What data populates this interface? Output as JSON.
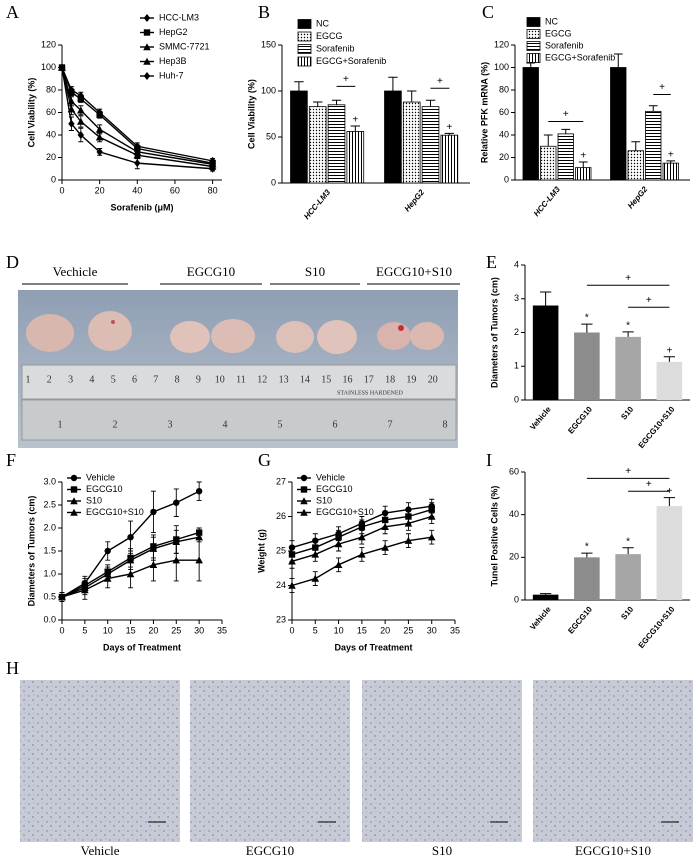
{
  "chart_data": [
    {
      "type": "line",
      "panel": "A",
      "ylabel": "Cell Viability (%)",
      "xlabel": "Sorafenib (μM)",
      "x": [
        0,
        5,
        10,
        20,
        40,
        80
      ],
      "xlim": [
        0,
        85
      ],
      "xticks": [
        0,
        20,
        40,
        60,
        80
      ],
      "ylim": [
        0,
        120
      ],
      "yticks": [
        0,
        20,
        40,
        60,
        80,
        100,
        120
      ],
      "series": [
        {
          "name": "HCC-LM3",
          "color": "#000000",
          "marker": "diamond",
          "values": [
            100,
            80,
            75,
            60,
            30,
            17
          ],
          "errors": [
            2,
            3,
            3,
            3,
            3,
            2
          ]
        },
        {
          "name": "HepG2",
          "color": "#000000",
          "marker": "square",
          "values": [
            100,
            78,
            72,
            58,
            28,
            15
          ],
          "errors": [
            2,
            3,
            3,
            3,
            3,
            2
          ]
        },
        {
          "name": "SMMC-7721",
          "color": "#000000",
          "marker": "triangle",
          "values": [
            100,
            70,
            62,
            45,
            25,
            14
          ],
          "errors": [
            2,
            4,
            4,
            4,
            3,
            2
          ]
        },
        {
          "name": "Hep3B",
          "color": "#000000",
          "marker": "triangle",
          "values": [
            100,
            63,
            52,
            38,
            22,
            12
          ],
          "errors": [
            2,
            5,
            5,
            4,
            3,
            2
          ]
        },
        {
          "name": "Huh-7",
          "color": "#000000",
          "marker": "diamond",
          "values": [
            100,
            50,
            40,
            25,
            15,
            10
          ],
          "errors": [
            2,
            6,
            6,
            3,
            5,
            2
          ]
        }
      ]
    },
    {
      "type": "bar",
      "panel": "B",
      "ylabel": "Cell Viability (%)",
      "categories": [
        "HCC-LM3",
        "HepG2"
      ],
      "ylim": [
        0,
        150
      ],
      "yticks": [
        0,
        50,
        100,
        150
      ],
      "series": [
        {
          "name": "NC",
          "color": "#000000",
          "values": [
            100,
            100
          ],
          "errors": [
            10,
            15
          ]
        },
        {
          "name": "EGCG",
          "color": "#000000",
          "pattern": "dots",
          "values": [
            83,
            88
          ],
          "errors": [
            5,
            12
          ]
        },
        {
          "name": "Sorafenib",
          "color": "#000000",
          "pattern": "hlines",
          "values": [
            85,
            83
          ],
          "errors": [
            5,
            7
          ]
        },
        {
          "name": "EGCG+Sorafenib",
          "color": "#000000",
          "pattern": "vlines",
          "values": [
            56,
            52
          ],
          "errors": [
            6,
            2
          ],
          "notes": [
            "+",
            "+"
          ]
        }
      ],
      "brackets": [
        {
          "label": "+",
          "category": 0,
          "from": 2,
          "to": 3,
          "y": 105
        },
        {
          "label": "+",
          "category": 1,
          "from": 2,
          "to": 3,
          "y": 103
        }
      ]
    },
    {
      "type": "bar",
      "panel": "C",
      "ylabel": "Relative PFK mRNA (%)",
      "categories": [
        "HCC-LM3",
        "HepG2"
      ],
      "ylim": [
        0,
        120
      ],
      "yticks": [
        0,
        20,
        40,
        60,
        80,
        100,
        120
      ],
      "series": [
        {
          "name": "NC",
          "color": "#000000",
          "values": [
            100,
            100
          ],
          "errors": [
            4,
            12
          ]
        },
        {
          "name": "EGCG",
          "color": "#000000",
          "pattern": "dots",
          "values": [
            30,
            26
          ],
          "errors": [
            10,
            8
          ]
        },
        {
          "name": "Sorafenib",
          "color": "#000000",
          "pattern": "hlines",
          "values": [
            41,
            61
          ],
          "errors": [
            4,
            5
          ]
        },
        {
          "name": "EGCG+Sorafenib",
          "color": "#000000",
          "pattern": "vlines",
          "values": [
            11,
            15
          ],
          "errors": [
            5,
            2
          ],
          "notes": [
            "+",
            "+"
          ]
        }
      ],
      "brackets": [
        {
          "label": "+",
          "category": 0,
          "from": 1,
          "to": 3,
          "y": 52
        },
        {
          "label": "+",
          "category": 1,
          "from": 2,
          "to": 3,
          "y": 76
        }
      ]
    },
    {
      "type": "bar",
      "panel": "E",
      "ylabel": "Diameters of Tumors (cm)",
      "categories": [
        "Vehicle",
        "EGCG10",
        "S10",
        "EGCG10+S10"
      ],
      "ylim": [
        0,
        4
      ],
      "yticks": [
        0,
        1,
        2,
        3,
        4
      ],
      "values": [
        2.8,
        2.0,
        1.87,
        1.13
      ],
      "errors": [
        0.4,
        0.25,
        0.15,
        0.15
      ],
      "colors": [
        "#000000",
        "#8c8c8c",
        "#a6a6a6",
        "#dcdcdc"
      ],
      "notes": [
        null,
        "*",
        "*",
        "+"
      ],
      "brackets": [
        {
          "label": "+",
          "from": 1,
          "to": 3,
          "y": 3.4
        },
        {
          "label": "+",
          "from": 2,
          "to": 3,
          "y": 2.75
        }
      ]
    },
    {
      "type": "line",
      "panel": "F",
      "ylabel": "Diameters of Tumors (cm)",
      "xlabel": "Days of Treatment",
      "x": [
        0,
        5,
        10,
        15,
        20,
        25,
        30
      ],
      "xlim": [
        0,
        35
      ],
      "xticks": [
        0,
        5,
        10,
        15,
        20,
        25,
        30,
        35
      ],
      "ylim": [
        0,
        3
      ],
      "yticks": [
        {
          "value": 0,
          "label": "0.0"
        },
        0.5,
        {
          "value": 1,
          "label": "1.0"
        },
        1.5,
        {
          "value": 2,
          "label": "2.0"
        },
        2.5,
        {
          "value": 3,
          "label": "3.0"
        }
      ],
      "series": [
        {
          "name": "Vehicle",
          "color": "#000000",
          "marker": "circle",
          "values": [
            0.5,
            0.8,
            1.5,
            1.8,
            2.35,
            2.55,
            2.8
          ],
          "errors": [
            0.1,
            0.15,
            0.2,
            0.35,
            0.45,
            0.3,
            0.2
          ]
        },
        {
          "name": "EGCG10",
          "color": "#000000",
          "marker": "square",
          "values": [
            0.5,
            0.75,
            1.05,
            1.35,
            1.6,
            1.75,
            1.9
          ],
          "errors": [
            0.1,
            0.15,
            0.15,
            0.2,
            0.25,
            0.3,
            0.1
          ]
        },
        {
          "name": "S10",
          "color": "#000000",
          "marker": "triangle",
          "values": [
            0.5,
            0.7,
            1.0,
            1.3,
            1.55,
            1.7,
            1.8
          ],
          "errors": [
            0.1,
            0.15,
            0.15,
            0.2,
            0.25,
            0.25,
            0.1
          ]
        },
        {
          "name": "EGCG10+S10",
          "color": "#000000",
          "marker": "triangle",
          "values": [
            0.5,
            0.65,
            0.9,
            1.0,
            1.2,
            1.3,
            1.3
          ],
          "errors": [
            0.1,
            0.2,
            0.2,
            0.3,
            0.35,
            0.45,
            0.45
          ]
        }
      ]
    },
    {
      "type": "line",
      "panel": "G",
      "ylabel": "Weight (g)",
      "xlabel": "Days of Treatment",
      "x": [
        0,
        5,
        10,
        15,
        20,
        25,
        30
      ],
      "xlim": [
        0,
        35
      ],
      "xticks": [
        0,
        5,
        10,
        15,
        20,
        25,
        30,
        35
      ],
      "ylim": [
        23,
        27
      ],
      "yticks": [
        23,
        24,
        25,
        26,
        27
      ],
      "series": [
        {
          "name": "Vehicle",
          "color": "#000000",
          "marker": "circle",
          "values": [
            25.1,
            25.3,
            25.5,
            25.8,
            26.1,
            26.2,
            26.3
          ],
          "errors": [
            0.2,
            0.2,
            0.2,
            0.2,
            0.2,
            0.2,
            0.2
          ]
        },
        {
          "name": "EGCG10",
          "color": "#000000",
          "marker": "square",
          "values": [
            24.9,
            25.1,
            25.4,
            25.7,
            25.9,
            26.0,
            26.2
          ],
          "errors": [
            0.2,
            0.2,
            0.2,
            0.2,
            0.2,
            0.2,
            0.2
          ]
        },
        {
          "name": "S10",
          "color": "#000000",
          "marker": "triangle",
          "values": [
            24.7,
            24.9,
            25.2,
            25.4,
            25.7,
            25.8,
            26.0
          ],
          "errors": [
            0.2,
            0.2,
            0.2,
            0.2,
            0.2,
            0.2,
            0.2
          ]
        },
        {
          "name": "EGCG10+S10",
          "color": "#000000",
          "marker": "triangle",
          "values": [
            24.0,
            24.2,
            24.6,
            24.9,
            25.1,
            25.3,
            25.4
          ],
          "errors": [
            0.2,
            0.2,
            0.2,
            0.2,
            0.2,
            0.2,
            0.2
          ]
        }
      ]
    },
    {
      "type": "bar",
      "panel": "I",
      "ylabel": "Tunel Positive Cells (%)",
      "categories": [
        "Vehicle",
        "EGCG10",
        "S10",
        "EGCG10+S10"
      ],
      "ylim": [
        0,
        60
      ],
      "yticks": [
        0,
        20,
        40,
        60
      ],
      "values": [
        2.5,
        20,
        21.5,
        44
      ],
      "errors": [
        0.5,
        2,
        3,
        4
      ],
      "colors": [
        "#000000",
        "#8c8c8c",
        "#a6a6a6",
        "#dcdcdc"
      ],
      "notes": [
        null,
        "*",
        "*",
        "+"
      ],
      "brackets": [
        {
          "label": "+",
          "from": 1,
          "to": 3,
          "y": 57
        },
        {
          "label": "+",
          "from": 2,
          "to": 3,
          "y": 51
        }
      ]
    }
  ],
  "photo": {
    "panel": "D",
    "labels": [
      "Vechicle",
      "EGCG10",
      "S10",
      "EGCG10+S10"
    ],
    "ruler_top": [
      1,
      2,
      3,
      4,
      5,
      6,
      7,
      8,
      9,
      10,
      11,
      12,
      13,
      14,
      15,
      16,
      17,
      18,
      19,
      20
    ],
    "ruler_bottom": [
      1,
      2,
      3,
      4,
      5,
      6,
      7,
      8
    ],
    "ruler_brand": "STAINLESS HARDENED"
  },
  "histology": {
    "panel": "H",
    "labels": [
      "Vehicle",
      "EGCG10",
      "S10",
      "EGCG10+S10"
    ]
  }
}
